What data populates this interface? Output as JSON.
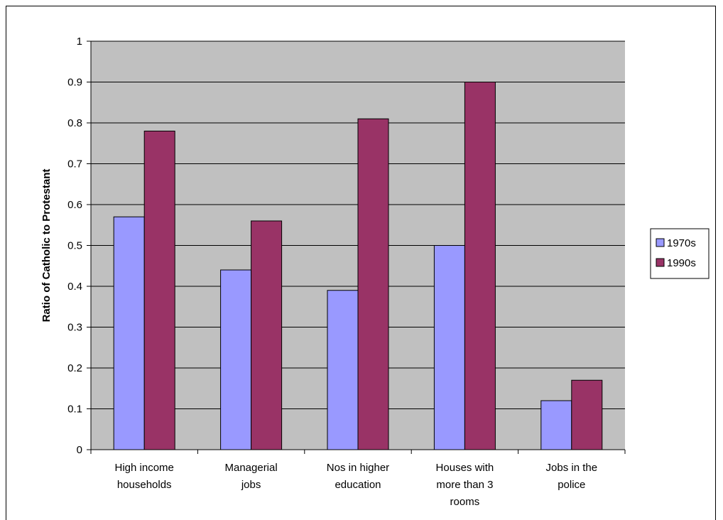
{
  "chart_data": {
    "type": "bar",
    "title": "",
    "xlabel": "",
    "ylabel": "Ratio of Catholic to Protestant",
    "ylim": [
      0,
      1
    ],
    "yticks": [
      "0",
      "0.1",
      "0.2",
      "0.3",
      "0.4",
      "0.5",
      "0.6",
      "0.7",
      "0.8",
      "0.9",
      "1"
    ],
    "grid": true,
    "legend_position": "right",
    "categories": [
      [
        "High income",
        "households"
      ],
      [
        "Managerial",
        "jobs"
      ],
      [
        "Nos in higher",
        "education"
      ],
      [
        "Houses with",
        "more than 3",
        "rooms"
      ],
      [
        "Jobs in the",
        "police"
      ]
    ],
    "series": [
      {
        "name": "1970s",
        "color": "#9999ff",
        "values": [
          0.57,
          0.44,
          0.39,
          0.5,
          0.12
        ]
      },
      {
        "name": "1990s",
        "color": "#993366",
        "values": [
          0.78,
          0.56,
          0.81,
          0.9,
          0.17
        ]
      }
    ],
    "plot_background": "#c0c0c0"
  }
}
